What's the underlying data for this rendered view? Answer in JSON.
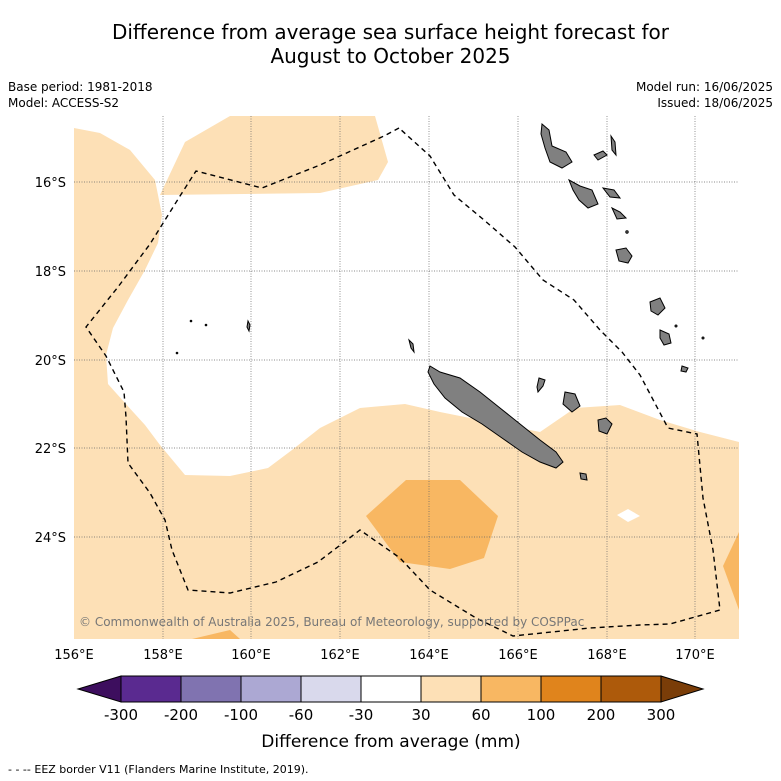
{
  "title": {
    "line1": "Difference from average sea surface height forecast for",
    "line2": "August to October 2025"
  },
  "meta_left": {
    "base_period": "Base period: 1981-2018",
    "model": "Model: ACCESS-S2"
  },
  "meta_right": {
    "model_run": "Model run: 16/06/2025",
    "issued": "Issued: 18/06/2025"
  },
  "copyright": "© Commonwealth of Australia 2025, Bureau of Meteorology, supported by COSPPac",
  "footnote": "- -  -- EEZ border V11 (Flanders Marine Institute, 2019).",
  "colorbar": {
    "label": "Difference from average (mm)",
    "ticks": [
      "-300",
      "-200",
      "-100",
      "-60",
      "-30",
      "30",
      "60",
      "100",
      "200",
      "300"
    ],
    "colors": [
      "#3d0e5e",
      "#5a2a90",
      "#8073b0",
      "#aca8d3",
      "#d9d9ec",
      "#ffffff",
      "#fde0b6",
      "#f8b762",
      "#e0841c",
      "#ad5a0b",
      "#7a3d08"
    ]
  },
  "chart_data": {
    "type": "heatmap",
    "title": "Difference from average sea surface height forecast for August to October 2025",
    "xlabel": "",
    "ylabel": "",
    "lon_range": [
      156,
      171
    ],
    "lat_range": [
      -26.2,
      -14.3
    ],
    "x_ticks": [
      "156°E",
      "158°E",
      "160°E",
      "162°E",
      "164°E",
      "166°E",
      "168°E",
      "170°E"
    ],
    "y_ticks": [
      "16°S",
      "18°S",
      "20°S",
      "22°S",
      "24°S"
    ],
    "gridlines": true,
    "categories_mm": [
      "-300",
      "-200",
      "-100",
      "-60",
      "-30",
      "30",
      "60",
      "100",
      "200",
      "300"
    ],
    "regions": [
      {
        "name": "near-average band centred on the Coral Sea",
        "range_mm": "-30 to 30"
      },
      {
        "name": "surrounding waters",
        "range_mm": "30 to 60"
      },
      {
        "name": "area west of New Caledonia near 164°E 23.5°S",
        "range_mm": "60 to 100"
      },
      {
        "name": "eastern edge near 171°E 24.5°S",
        "range_mm": "60 to 100"
      },
      {
        "name": "south-west corner near 160°E 26°S",
        "range_mm": "60 to 100"
      }
    ]
  }
}
